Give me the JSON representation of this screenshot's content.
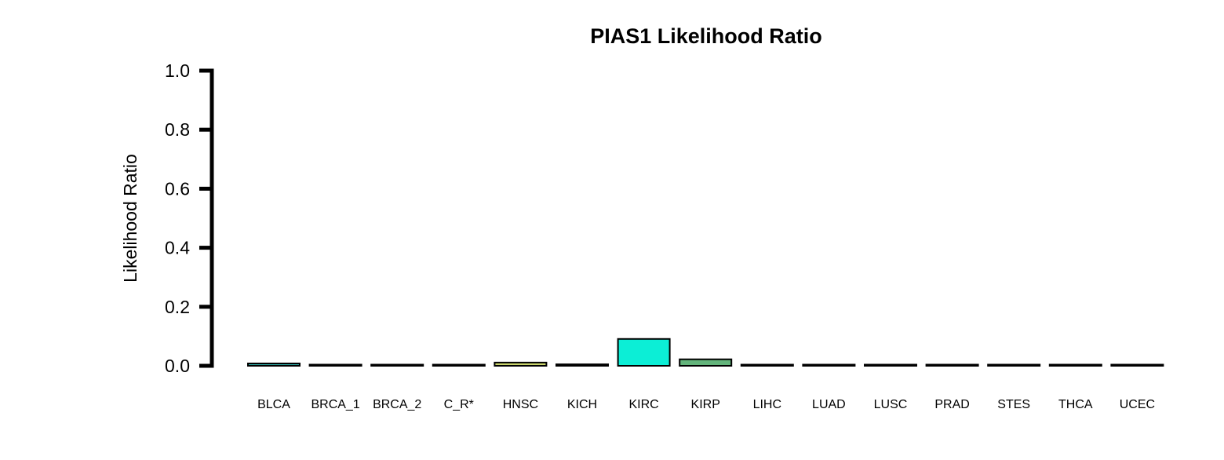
{
  "chart_data": {
    "type": "bar",
    "title": "PIAS1 Likelihood Ratio",
    "xlabel": "",
    "ylabel": "Likelihood Ratio",
    "ylim": [
      0,
      1
    ],
    "yticks": [
      "0.0",
      "0.2",
      "0.4",
      "0.6",
      "0.8",
      "1.0"
    ],
    "grid": false,
    "categories": [
      "BLCA",
      "BRCA_1",
      "BRCA_2",
      "C_R*",
      "HNSC",
      "KICH",
      "KIRC",
      "KIRP",
      "LIHC",
      "LUAD",
      "LUSC",
      "PRAD",
      "STES",
      "THCA",
      "UCEC"
    ],
    "values": [
      0.008,
      0.004,
      0.001,
      0.003,
      0.011,
      0.005,
      0.091,
      0.022,
      0.001,
      0.001,
      0.001,
      0.001,
      0.001,
      0.003,
      0.003
    ],
    "colors": [
      "#2ca7a3",
      "#1a2d6b",
      "#4a2a6b",
      "#2a4470",
      "#c8d36b",
      "#264a5f",
      "#0ceed6",
      "#63b47b",
      "#3a3a8a",
      "#2a2a60",
      "#6a2c6c",
      "#1f3a5a",
      "#3a1f5a",
      "#2a6a6a",
      "#4a3a7a"
    ]
  }
}
